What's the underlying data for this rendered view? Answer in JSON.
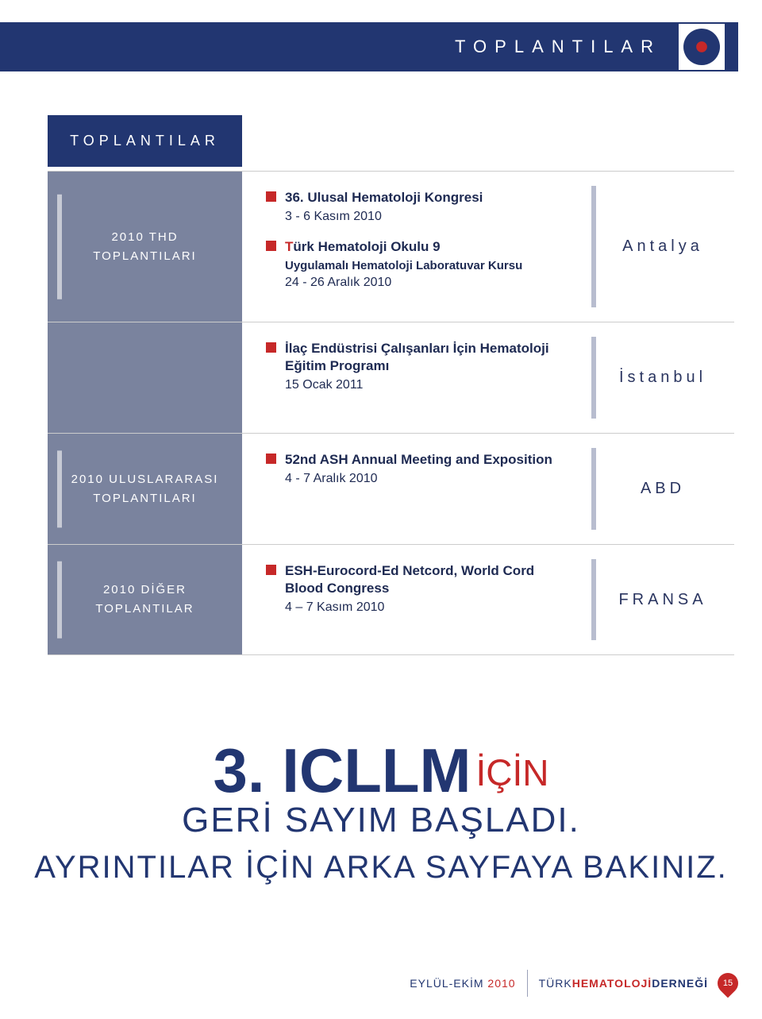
{
  "header": {
    "title": "TOPLANTILAR",
    "bar_bg": "#223671",
    "title_color": "#ffffff"
  },
  "section_label": "TOPLANTILAR",
  "rows": [
    {
      "left_label": "2010 THD TOPLANTILARI",
      "height": "tall",
      "events": [
        {
          "title": "36. Ulusal Hematoloji Kongresi",
          "date": "3 - 6 Kasım 2010"
        },
        {
          "title": "Türk Hematoloji Okulu 9",
          "subtitle": "Uygulamalı Hematoloji Laboratuvar Kursu",
          "date": "24 - 26 Aralık 2010"
        }
      ],
      "location": "Antalya"
    },
    {
      "left_label": "",
      "events": [
        {
          "title": "İlaç Endüstrisi Çalışanları İçin Hematoloji Eğitim Programı",
          "date": "15 Ocak 2011"
        }
      ],
      "location": "İstanbul"
    },
    {
      "left_label": "2010 ULUSLARARASI TOPLANTILARI",
      "events": [
        {
          "title": "52nd ASH Annual Meeting and Exposition",
          "date": "4 - 7 Aralık 2010"
        }
      ],
      "location": "ABD"
    },
    {
      "left_label": "2010 DİĞER TOPLANTILAR",
      "events": [
        {
          "title": "ESH-Eurocord-Ed Netcord, World Cord Blood Congress",
          "date": "4 – 7 Kasım 2010"
        }
      ],
      "location": "FRANSA"
    }
  ],
  "promo": {
    "main": "3. ICLLM",
    "suffix": "İÇİN",
    "line2": "GERİ SAYIM BAŞLADI.",
    "line3": "AYRINTILAR İÇİN ARKA SAYFAYA BAKINIZ."
  },
  "footer": {
    "period": "EYLÜL-EKİM",
    "year": "2010",
    "org_a": "TÜRK",
    "org_b": "HEMATOLOJİ",
    "org_c": "DERNEĞİ",
    "page": "15"
  },
  "colors": {
    "navy": "#223671",
    "slate": "#7a839e",
    "bar_light": "#b8bdcf",
    "red": "#c62828",
    "text": "#1e2a52"
  }
}
